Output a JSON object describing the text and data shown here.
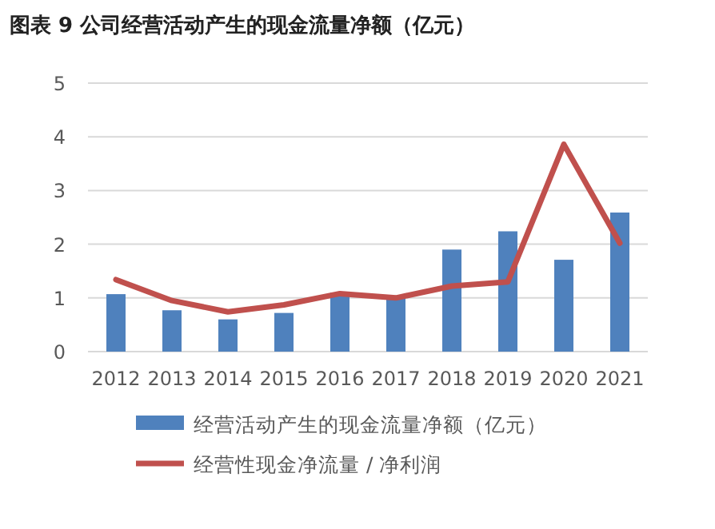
{
  "chart_data": {
    "type": "bar",
    "title": "图表 9 公司经营活动产生的现金流量净额（亿元）",
    "categories": [
      "2012",
      "2013",
      "2014",
      "2015",
      "2016",
      "2017",
      "2018",
      "2019",
      "2020",
      "2021"
    ],
    "series": [
      {
        "name": "经营活动产生的现金流量净额（亿元）",
        "color": "#4f81bd",
        "values": [
          1.07,
          0.77,
          0.6,
          0.72,
          1.1,
          1.04,
          1.9,
          2.24,
          1.71,
          2.59
        ]
      },
      {
        "name": "经营性现金净流量 / 净利润",
        "type": "line",
        "color": "#c0504d",
        "values": [
          1.34,
          0.95,
          0.74,
          0.87,
          1.08,
          1.0,
          1.22,
          1.3,
          3.86,
          2.02
        ]
      }
    ],
    "ylim": [
      0,
      5
    ],
    "yticks": [
      0,
      1,
      2,
      3,
      4,
      5
    ],
    "grid": "y",
    "legend": "bottom"
  }
}
